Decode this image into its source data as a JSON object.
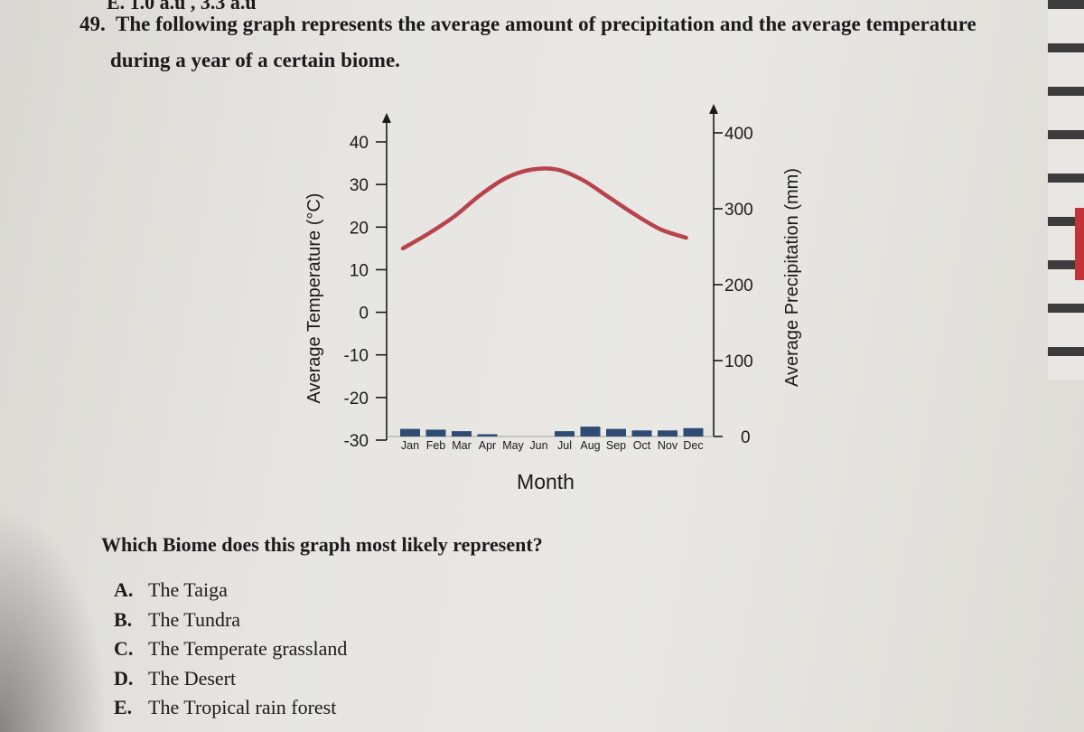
{
  "top_fragment": "E. 1.0 a.u , 3.3 a.u",
  "question": {
    "number": "49.",
    "line1": "The following graph represents the average amount of precipitation and the average temperature",
    "line2": "during a year of a certain biome.",
    "sub_question": "Which Biome does this graph most likely represent?"
  },
  "choices": [
    {
      "letter": "A.",
      "text": "The Taiga"
    },
    {
      "letter": "B.",
      "text": "The Tundra"
    },
    {
      "letter": "C.",
      "text": "The Temperate grassland"
    },
    {
      "letter": "D.",
      "text": "The Desert"
    },
    {
      "letter": "E.",
      "text": "The Tropical rain forest"
    }
  ],
  "colors": {
    "temperature_line": "#b8434c",
    "precipitation_bars": "#2f4b74",
    "axis": "#1b1b1b"
  },
  "chart_data": {
    "type": "bar+line",
    "categories": [
      "Jan",
      "Feb",
      "Mar",
      "Apr",
      "May",
      "Jun",
      "Jul",
      "Aug",
      "Sep",
      "Oct",
      "Nov",
      "Dec"
    ],
    "precipitation": {
      "values": [
        10,
        9,
        7,
        3,
        0,
        0,
        7,
        13,
        10,
        8,
        8,
        11
      ],
      "ylabel": "Average Precipitation (mm)",
      "ylim": [
        0,
        400
      ],
      "ticks": [
        "0",
        "100",
        "200",
        "300",
        "400"
      ]
    },
    "temperature": {
      "values": [
        15,
        18.5,
        22.5,
        27.5,
        31.5,
        33.5,
        33.5,
        31,
        27,
        23,
        19.5,
        17.5
      ],
      "ylabel": "Average Temperature (°C)",
      "ylim": [
        -30,
        40
      ],
      "ticks": [
        "-30",
        "-20",
        "-10",
        "0",
        "10",
        "20",
        "30",
        "40"
      ]
    },
    "xlabel": "Month",
    "grid": false,
    "legend": "none"
  }
}
